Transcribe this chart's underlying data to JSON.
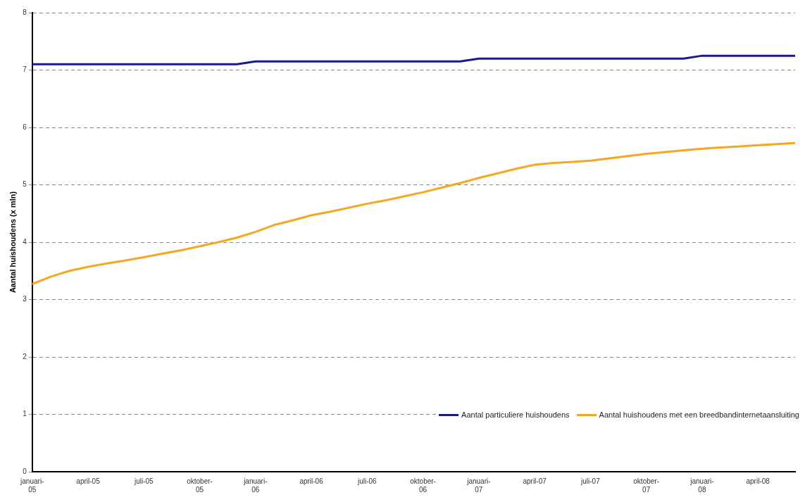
{
  "chart_data": {
    "type": "line",
    "ylabel": "Aantal huishoudens (x mln)",
    "categories": [
      "januari-05",
      null,
      null,
      "april-05",
      null,
      null,
      "juli-05",
      null,
      null,
      "oktober-05",
      null,
      null,
      "januari-06",
      null,
      null,
      "april-06",
      null,
      null,
      "juli-06",
      null,
      null,
      "oktober-06",
      null,
      null,
      "januari-07",
      null,
      null,
      "april-07",
      null,
      null,
      "juli-07",
      null,
      null,
      "oktober-07",
      null,
      null,
      "januari-08",
      null,
      null,
      "april-08",
      null,
      null
    ],
    "series": [
      {
        "name": "Aantal particuliere huishoudens",
        "color": "#1a1a8c",
        "values": [
          7.1,
          7.1,
          7.1,
          7.1,
          7.1,
          7.1,
          7.1,
          7.1,
          7.1,
          7.1,
          7.1,
          7.1,
          7.15,
          7.15,
          7.15,
          7.15,
          7.15,
          7.15,
          7.15,
          7.15,
          7.15,
          7.15,
          7.15,
          7.15,
          7.2,
          7.2,
          7.2,
          7.2,
          7.2,
          7.2,
          7.2,
          7.2,
          7.2,
          7.2,
          7.2,
          7.2,
          7.25,
          7.25,
          7.25,
          7.25,
          7.25,
          7.25
        ]
      },
      {
        "name": "Aantal huishoudens met een breedbandinternetaansluiting",
        "color": "#f5a623",
        "values": [
          3.27,
          3.4,
          3.5,
          3.57,
          3.63,
          3.68,
          3.74,
          3.8,
          3.86,
          3.93,
          4.0,
          4.08,
          4.18,
          4.3,
          4.38,
          4.47,
          4.53,
          4.6,
          4.67,
          4.73,
          4.8,
          4.87,
          4.95,
          5.03,
          5.12,
          5.2,
          5.28,
          5.35,
          5.38,
          5.4,
          5.42,
          5.46,
          5.5,
          5.54,
          5.57,
          5.6,
          5.63,
          5.65,
          5.67,
          5.69,
          5.71,
          5.73
        ]
      }
    ],
    "ylim": [
      0,
      8
    ],
    "yticks": [
      0,
      1,
      2,
      3,
      4,
      5,
      6,
      7,
      8
    ],
    "grid": "y",
    "legend": "bottom right",
    "marker": "none",
    "line_style": "solid"
  }
}
